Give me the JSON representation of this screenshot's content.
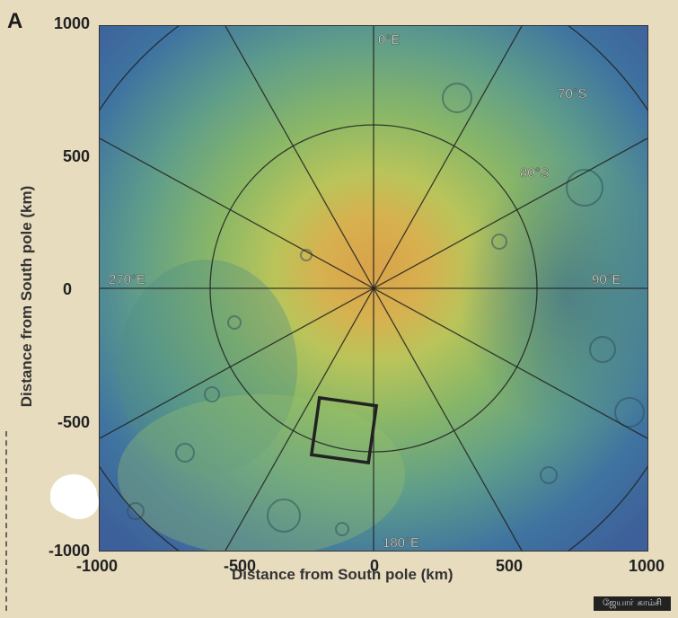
{
  "panel_letter": "A",
  "map": {
    "x_ticks": [
      "-1000",
      "-500",
      "0",
      "500",
      "1000"
    ],
    "y_ticks": [
      "1000",
      "500",
      "0",
      "-500",
      "-1000"
    ],
    "x_label": "Distance from South pole (km)",
    "y_label": "Distance from South pole (km)",
    "x_range": [
      -1000,
      1000
    ],
    "y_range": [
      -1000,
      1000
    ],
    "longitude_labels": {
      "top": "0°E",
      "right": "90°E",
      "bottom": "180°E",
      "left": "270°E"
    },
    "latitude_labels": {
      "lat70": "70°S",
      "lat80": "80°S"
    },
    "region_box": {
      "center_km": [
        -100,
        -460
      ],
      "size_km": 210,
      "rotation_deg": 8
    }
  },
  "credit": "ஜேயாா் காம்சி"
}
